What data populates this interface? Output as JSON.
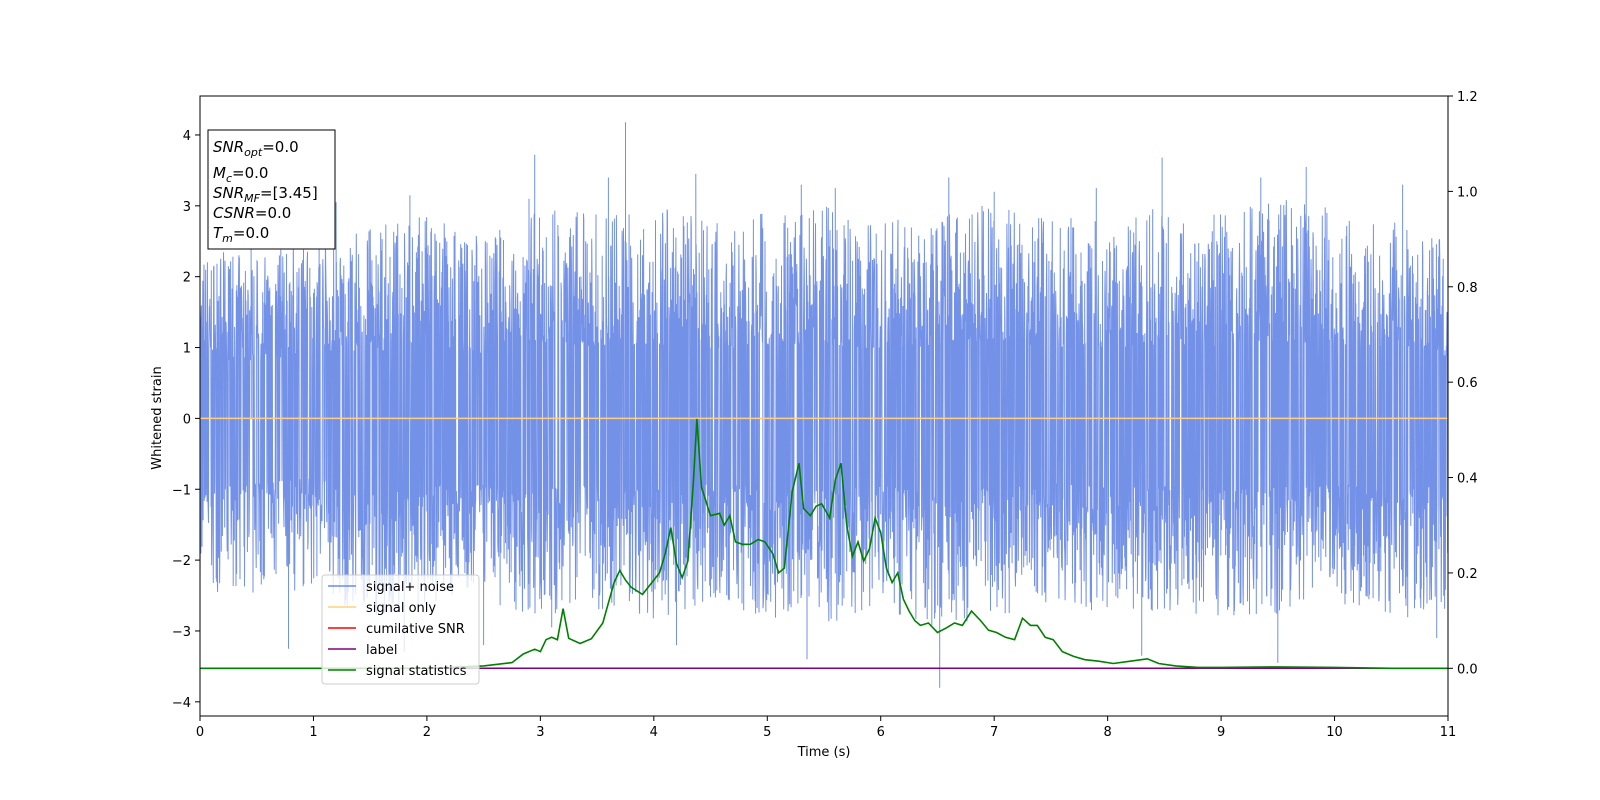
{
  "chart_data": {
    "type": "line",
    "xlabel": "Time (s)",
    "ylabel": "Whitened strain",
    "xlim": [
      0,
      11
    ],
    "ylim": [
      -4.2,
      4.55
    ],
    "y2lim": [
      -0.1,
      1.2
    ],
    "xticks": [
      0,
      1,
      2,
      3,
      4,
      5,
      6,
      7,
      8,
      9,
      10,
      11
    ],
    "yticks": [
      -4,
      -3,
      -2,
      -1,
      0,
      1,
      2,
      3,
      4
    ],
    "y2ticks": [
      0.0,
      0.2,
      0.4,
      0.6,
      0.8,
      1.0,
      1.2
    ],
    "grid": false,
    "legend_position": "lower-left",
    "legend": [
      {
        "name": "signal+ noise",
        "color": "#6c8be6"
      },
      {
        "name": "signal only",
        "color": "#ffcf7f"
      },
      {
        "name": "cumilative SNR",
        "color": "#ff0000"
      },
      {
        "name": "label",
        "color": "#800080"
      },
      {
        "name": "signal statistics",
        "color": "#008000"
      }
    ],
    "info_box": [
      {
        "base": "SNR",
        "sub": "opt",
        "value": "=0.0"
      },
      {
        "base": "M",
        "sub": "c",
        "value": "=0.0"
      },
      {
        "base": "SNR",
        "sub": "MF",
        "value": "=[3.45]"
      },
      {
        "base": "CSNR",
        "sub": "",
        "value": "=0.0"
      },
      {
        "base": "T",
        "sub": "m",
        "value": "=0.0"
      }
    ],
    "signal_only": {
      "axis": "left",
      "x": [
        0,
        11
      ],
      "y": [
        0,
        0
      ]
    },
    "label_series": {
      "axis": "right",
      "x": [
        0,
        11
      ],
      "y": [
        0,
        0
      ]
    },
    "cumulative_snr": {
      "axis": "right",
      "x": [
        0,
        11
      ],
      "y": [
        0,
        0
      ]
    },
    "signal_noise_envelope": {
      "axis": "left",
      "x": [
        0,
        0.5,
        1,
        1.5,
        2,
        2.5,
        3,
        3.5,
        4,
        4.5,
        5,
        5.5,
        6,
        6.5,
        7,
        7.5,
        8,
        8.5,
        9,
        9.5,
        10,
        10.5,
        11
      ],
      "upper": [
        2.4,
        2.3,
        2.6,
        2.7,
        2.9,
        2.6,
        3.1,
        2.9,
        3.0,
        2.8,
        2.9,
        3.0,
        2.8,
        2.9,
        3.1,
        2.9,
        2.8,
        3.0,
        2.9,
        3.1,
        3.0,
        2.8,
        2.5
      ],
      "lower": [
        -2.5,
        -2.6,
        -2.4,
        -2.9,
        -2.7,
        -2.6,
        -2.8,
        -2.7,
        -2.9,
        -2.6,
        -2.8,
        -2.9,
        -2.7,
        -3.0,
        -2.8,
        -2.6,
        -2.8,
        -2.7,
        -2.9,
        -2.8,
        -2.6,
        -2.9,
        -2.7
      ],
      "peaks": [
        {
          "x": 0.45,
          "y": 2.6
        },
        {
          "x": 1.05,
          "y": 3.0
        },
        {
          "x": 1.2,
          "y": 3.05
        },
        {
          "x": 1.85,
          "y": 3.15
        },
        {
          "x": 2.9,
          "y": 3.1
        },
        {
          "x": 2.95,
          "y": 3.72
        },
        {
          "x": 3.6,
          "y": 3.4
        },
        {
          "x": 3.75,
          "y": 4.18
        },
        {
          "x": 4.37,
          "y": 3.45
        },
        {
          "x": 5.3,
          "y": 3.3
        },
        {
          "x": 5.6,
          "y": 3.25
        },
        {
          "x": 6.6,
          "y": 3.4
        },
        {
          "x": 7.0,
          "y": 3.2
        },
        {
          "x": 7.9,
          "y": 3.25
        },
        {
          "x": 8.48,
          "y": 3.68
        },
        {
          "x": 9.35,
          "y": 3.4
        },
        {
          "x": 9.75,
          "y": 3.55
        },
        {
          "x": 10.6,
          "y": 3.3
        },
        {
          "x": 11.0,
          "y": 3.3
        },
        {
          "x": 0.78,
          "y": -3.25
        },
        {
          "x": 1.8,
          "y": -3.3
        },
        {
          "x": 2.5,
          "y": -3.2
        },
        {
          "x": 3.1,
          "y": -2.95
        },
        {
          "x": 4.2,
          "y": -3.2
        },
        {
          "x": 5.35,
          "y": -3.4
        },
        {
          "x": 6.52,
          "y": -3.8
        },
        {
          "x": 8.3,
          "y": -3.35
        },
        {
          "x": 9.5,
          "y": -3.45
        },
        {
          "x": 10.9,
          "y": -3.1
        }
      ]
    },
    "signal_statistics": {
      "axis": "right",
      "x": [
        0.0,
        1.0,
        2.0,
        2.5,
        2.75,
        2.85,
        2.95,
        3.0,
        3.05,
        3.1,
        3.15,
        3.2,
        3.25,
        3.35,
        3.45,
        3.55,
        3.65,
        3.7,
        3.75,
        3.8,
        3.9,
        4.0,
        4.05,
        4.1,
        4.15,
        4.2,
        4.25,
        4.3,
        4.35,
        4.38,
        4.42,
        4.5,
        4.58,
        4.62,
        4.67,
        4.72,
        4.78,
        4.85,
        4.92,
        4.98,
        5.05,
        5.1,
        5.15,
        5.22,
        5.28,
        5.32,
        5.38,
        5.43,
        5.48,
        5.55,
        5.6,
        5.65,
        5.7,
        5.75,
        5.8,
        5.85,
        5.9,
        5.95,
        6.0,
        6.05,
        6.1,
        6.15,
        6.2,
        6.25,
        6.3,
        6.35,
        6.42,
        6.5,
        6.58,
        6.65,
        6.72,
        6.8,
        6.88,
        6.95,
        7.02,
        7.1,
        7.18,
        7.25,
        7.32,
        7.38,
        7.45,
        7.52,
        7.6,
        7.7,
        7.8,
        7.92,
        8.05,
        8.2,
        8.35,
        8.45,
        8.6,
        8.8,
        9.0,
        9.5,
        10.0,
        10.5,
        11.0
      ],
      "y": [
        0.0,
        0.0,
        0.0,
        0.005,
        0.012,
        0.03,
        0.04,
        0.035,
        0.06,
        0.065,
        0.06,
        0.125,
        0.063,
        0.052,
        0.062,
        0.095,
        0.18,
        0.205,
        0.185,
        0.17,
        0.155,
        0.185,
        0.2,
        0.24,
        0.295,
        0.22,
        0.19,
        0.225,
        0.395,
        0.523,
        0.38,
        0.32,
        0.325,
        0.3,
        0.32,
        0.265,
        0.26,
        0.26,
        0.27,
        0.265,
        0.24,
        0.2,
        0.21,
        0.37,
        0.43,
        0.335,
        0.32,
        0.34,
        0.345,
        0.315,
        0.395,
        0.43,
        0.3,
        0.235,
        0.265,
        0.225,
        0.25,
        0.315,
        0.285,
        0.21,
        0.18,
        0.2,
        0.145,
        0.12,
        0.1,
        0.09,
        0.095,
        0.075,
        0.085,
        0.095,
        0.09,
        0.12,
        0.1,
        0.08,
        0.075,
        0.065,
        0.06,
        0.105,
        0.09,
        0.09,
        0.065,
        0.06,
        0.035,
        0.025,
        0.018,
        0.015,
        0.01,
        0.015,
        0.02,
        0.01,
        0.005,
        0.002,
        0.002,
        0.003,
        0.002,
        0.0,
        0.0
      ]
    }
  }
}
